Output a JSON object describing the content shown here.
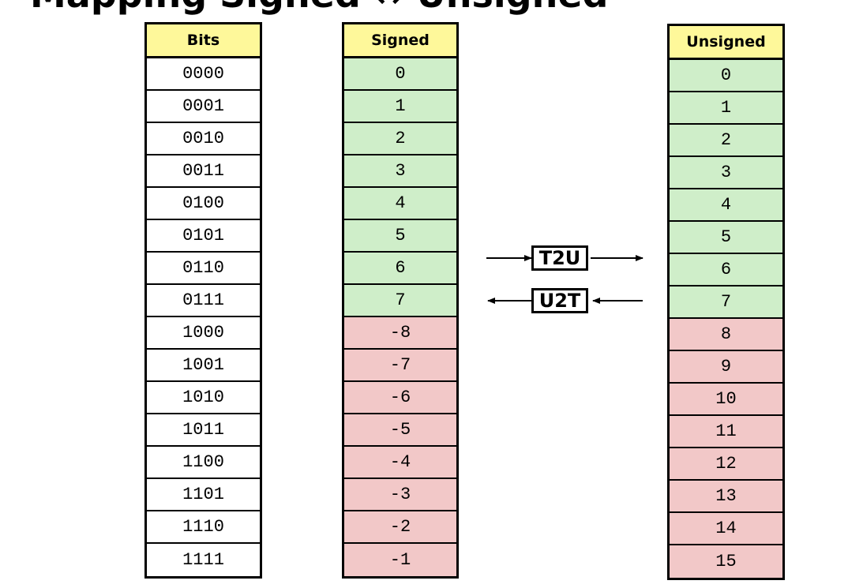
{
  "title": "Mapping Signed ↔ Unsigned",
  "columns": {
    "bits": {
      "header": "Bits",
      "rows": [
        "0000",
        "0001",
        "0010",
        "0011",
        "0100",
        "0101",
        "0110",
        "0111",
        "1000",
        "1001",
        "1010",
        "1011",
        "1100",
        "1101",
        "1110",
        "1111"
      ]
    },
    "signed": {
      "header": "Signed",
      "rows": [
        "0",
        "1",
        "2",
        "3",
        "4",
        "5",
        "6",
        "7",
        "-8",
        "-7",
        "-6",
        "-5",
        "-4",
        "-3",
        "-2",
        "-1"
      ]
    },
    "unsigned": {
      "header": "Unsigned",
      "rows": [
        "0",
        "1",
        "2",
        "3",
        "4",
        "5",
        "6",
        "7",
        "8",
        "9",
        "10",
        "11",
        "12",
        "13",
        "14",
        "15"
      ]
    }
  },
  "mappings": {
    "t2u": "T2U",
    "u2t": "U2T"
  },
  "colors": {
    "header": "#fef89a",
    "same_value": "#cfeec9",
    "different_value": "#f2c8c8"
  }
}
